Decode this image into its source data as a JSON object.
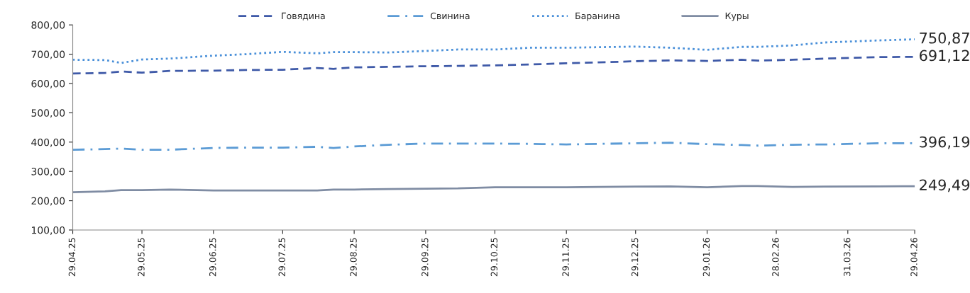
{
  "chart_data": {
    "type": "line",
    "x": [
      "2025-04-29",
      "2025-05-13",
      "2025-05-20",
      "2025-05-29",
      "2025-06-10",
      "2025-06-29",
      "2025-07-13",
      "2025-07-29",
      "2025-08-13",
      "2025-08-20",
      "2025-08-29",
      "2025-09-13",
      "2025-09-29",
      "2025-10-13",
      "2025-10-29",
      "2025-11-13",
      "2025-11-29",
      "2025-12-13",
      "2025-12-29",
      "2026-01-13",
      "2026-01-29",
      "2026-02-13",
      "2026-02-20",
      "2026-03-07",
      "2026-03-21",
      "2026-04-13",
      "2026-04-29"
    ],
    "series": [
      {
        "name": "Говядина",
        "color": "#3f5aa8",
        "line_style": "dashed",
        "values": [
          634,
          636,
          641,
          637,
          643,
          644,
          646,
          647,
          653,
          650,
          655,
          657,
          659,
          660,
          662,
          665,
          669,
          672,
          676,
          679,
          677,
          681,
          678,
          681,
          685,
          690,
          691.12
        ],
        "value_labels": [
          null,
          null,
          null,
          null,
          null,
          null,
          null,
          null,
          null,
          null,
          null,
          null,
          null,
          null,
          null,
          null,
          null,
          null,
          null,
          null,
          null,
          null,
          null,
          null,
          null,
          null,
          "691,12"
        ]
      },
      {
        "name": "Свинина",
        "color": "#5b9bd5",
        "line_style": "dashdot",
        "values": [
          374,
          376,
          378,
          374,
          374,
          380,
          381,
          381,
          384,
          380,
          385,
          391,
          395,
          395,
          395,
          394,
          392,
          394,
          396,
          398,
          393,
          390,
          388,
          391,
          392,
          396,
          396.19
        ],
        "value_labels": [
          null,
          null,
          null,
          null,
          null,
          null,
          null,
          null,
          null,
          null,
          null,
          null,
          null,
          null,
          null,
          null,
          null,
          null,
          null,
          null,
          null,
          null,
          null,
          null,
          null,
          null,
          "396,19"
        ]
      },
      {
        "name": "Баранина",
        "color": "#4a90d9",
        "line_style": "dotted",
        "values": [
          681,
          680,
          670,
          682,
          685,
          695,
          700,
          708,
          703,
          707,
          707,
          706,
          711,
          716,
          716,
          722,
          722,
          724,
          726,
          722,
          715,
          725,
          725,
          730,
          740,
          747,
          750.87
        ],
        "value_labels": [
          null,
          null,
          null,
          null,
          null,
          null,
          null,
          null,
          null,
          null,
          null,
          null,
          null,
          null,
          null,
          null,
          null,
          null,
          null,
          null,
          null,
          null,
          null,
          null,
          null,
          null,
          "750,87"
        ]
      },
      {
        "name": "Куры",
        "color": "#7f8ca3",
        "line_style": "solid",
        "values": [
          229,
          232,
          236,
          236,
          238,
          235,
          235,
          235,
          235,
          238,
          238,
          240,
          241,
          242,
          246,
          246,
          246,
          247,
          248,
          249,
          246,
          250,
          250,
          247,
          248,
          249,
          249.49
        ],
        "value_labels": [
          null,
          null,
          null,
          null,
          null,
          null,
          null,
          null,
          null,
          null,
          null,
          null,
          null,
          null,
          null,
          null,
          null,
          null,
          null,
          null,
          null,
          null,
          null,
          null,
          null,
          null,
          "249,49"
        ]
      }
    ],
    "xlim": [
      "2025-04-29",
      "2026-04-29"
    ],
    "xticks": [
      {
        "value": "2025-04-29",
        "label": "29.04.25"
      },
      {
        "value": "2025-05-29",
        "label": "29.05.25"
      },
      {
        "value": "2025-06-29",
        "label": "29.06.25"
      },
      {
        "value": "2025-07-29",
        "label": "29.07.25"
      },
      {
        "value": "2025-08-29",
        "label": "29.08.25"
      },
      {
        "value": "2025-09-29",
        "label": "29.09.25"
      },
      {
        "value": "2025-10-29",
        "label": "29.10.25"
      },
      {
        "value": "2025-11-29",
        "label": "29.11.25"
      },
      {
        "value": "2025-12-29",
        "label": "29.12.25"
      },
      {
        "value": "2026-01-29",
        "label": "29.01.26"
      },
      {
        "value": "2026-02-28",
        "label": "28.02.26"
      },
      {
        "value": "2026-03-31",
        "label": "31.03.26"
      },
      {
        "value": "2026-04-29",
        "label": "29.04.26"
      }
    ],
    "ylim": [
      100,
      800
    ],
    "yticks": [
      {
        "value": 100,
        "label": "100,00"
      },
      {
        "value": 200,
        "label": "200,00"
      },
      {
        "value": 300,
        "label": "300,00"
      },
      {
        "value": 400,
        "label": "400,00"
      },
      {
        "value": 500,
        "label": "500,00"
      },
      {
        "value": 600,
        "label": "600,00"
      },
      {
        "value": 700,
        "label": "700,00"
      },
      {
        "value": 800,
        "label": "800,00"
      }
    ],
    "grid": false,
    "legend": "top",
    "marker": "none"
  }
}
